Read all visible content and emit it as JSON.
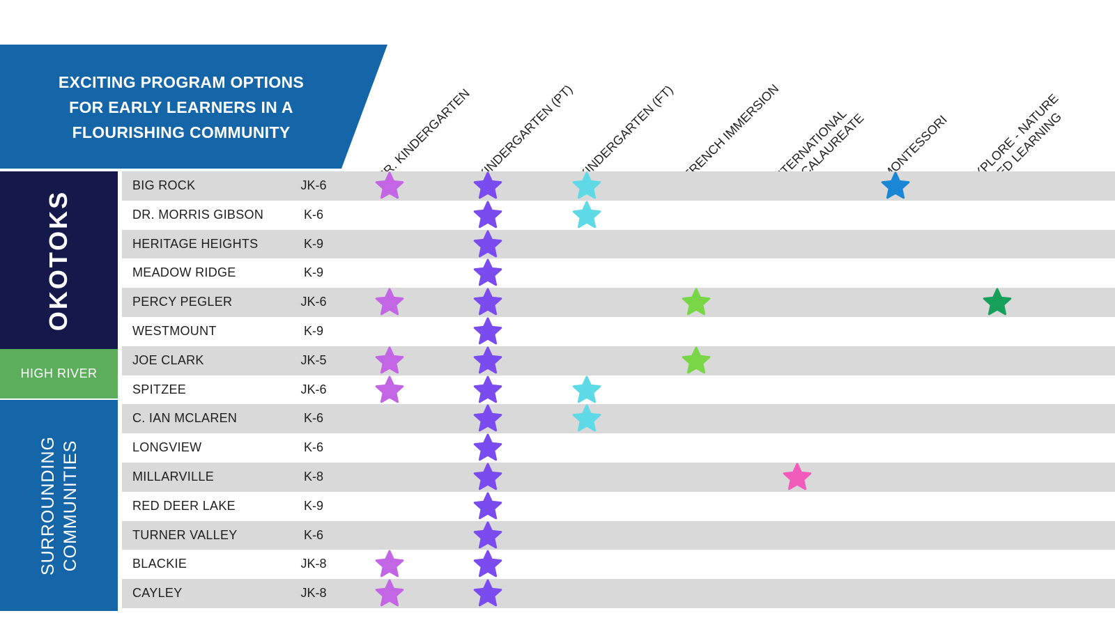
{
  "header": {
    "title": "EXCITING PROGRAM OPTIONS\nFOR EARLY LEARNERS IN A\nFLOURISHING COMMUNITY"
  },
  "columns": [
    {
      "label": "JR. KINDERGARTEN",
      "color": "#c266e6"
    },
    {
      "label": "KINDERGARTEN (PT)",
      "color": "#7a4cf0"
    },
    {
      "label": "KINDERGARTEN (FT)",
      "color": "#5ed9e6"
    },
    {
      "label": "FRENCH IMMERSION",
      "color": "#78d647"
    },
    {
      "label": "INTERNATIONAL\nBACCALAUREATE",
      "color": "#f25bba"
    },
    {
      "label": "MONTESSORI",
      "color": "#1a86d6"
    },
    {
      "label": "EXPLORE - NATURE\nBASED LEARNING",
      "color": "#17a05a"
    }
  ],
  "regions": [
    {
      "label": "OKOTOKS",
      "color": "#14184a"
    },
    {
      "label": "HIGH RIVER",
      "color": "#5cae5c"
    },
    {
      "label": "SURROUNDING\nCOMMUNITIES",
      "color": "#1466a8"
    }
  ],
  "schools": [
    {
      "name": "BIG ROCK",
      "grades": "JK-6",
      "programs": [
        true,
        true,
        true,
        false,
        false,
        true,
        false
      ]
    },
    {
      "name": "DR. MORRIS GIBSON",
      "grades": "K-6",
      "programs": [
        false,
        true,
        true,
        false,
        false,
        false,
        false
      ]
    },
    {
      "name": "HERITAGE HEIGHTS",
      "grades": "K-9",
      "programs": [
        false,
        true,
        false,
        false,
        false,
        false,
        false
      ]
    },
    {
      "name": "MEADOW RIDGE",
      "grades": "K-9",
      "programs": [
        false,
        true,
        false,
        false,
        false,
        false,
        false
      ]
    },
    {
      "name": "PERCY PEGLER",
      "grades": "JK-6",
      "programs": [
        true,
        true,
        false,
        true,
        false,
        false,
        true
      ]
    },
    {
      "name": "WESTMOUNT",
      "grades": "K-9",
      "programs": [
        false,
        true,
        false,
        false,
        false,
        false,
        false
      ]
    },
    {
      "name": "JOE CLARK",
      "grades": "JK-5",
      "programs": [
        true,
        true,
        false,
        true,
        false,
        false,
        false
      ]
    },
    {
      "name": "SPITZEE",
      "grades": "JK-6",
      "programs": [
        true,
        true,
        true,
        false,
        false,
        false,
        false
      ]
    },
    {
      "name": "C. IAN MCLAREN",
      "grades": "K-6",
      "programs": [
        false,
        true,
        true,
        false,
        false,
        false,
        false
      ]
    },
    {
      "name": "LONGVIEW",
      "grades": "K-6",
      "programs": [
        false,
        true,
        false,
        false,
        false,
        false,
        false
      ]
    },
    {
      "name": "MILLARVILLE",
      "grades": "K-8",
      "programs": [
        false,
        true,
        false,
        false,
        true,
        false,
        false
      ]
    },
    {
      "name": "RED DEER LAKE",
      "grades": "K-9",
      "programs": [
        false,
        true,
        false,
        false,
        false,
        false,
        false
      ]
    },
    {
      "name": "TURNER VALLEY",
      "grades": "K-6",
      "programs": [
        false,
        true,
        false,
        false,
        false,
        false,
        false
      ]
    },
    {
      "name": "BLACKIE",
      "grades": "JK-8",
      "programs": [
        true,
        true,
        false,
        false,
        false,
        false,
        false
      ]
    },
    {
      "name": "CAYLEY",
      "grades": "JK-8",
      "programs": [
        true,
        true,
        false,
        false,
        false,
        false,
        false
      ]
    }
  ]
}
